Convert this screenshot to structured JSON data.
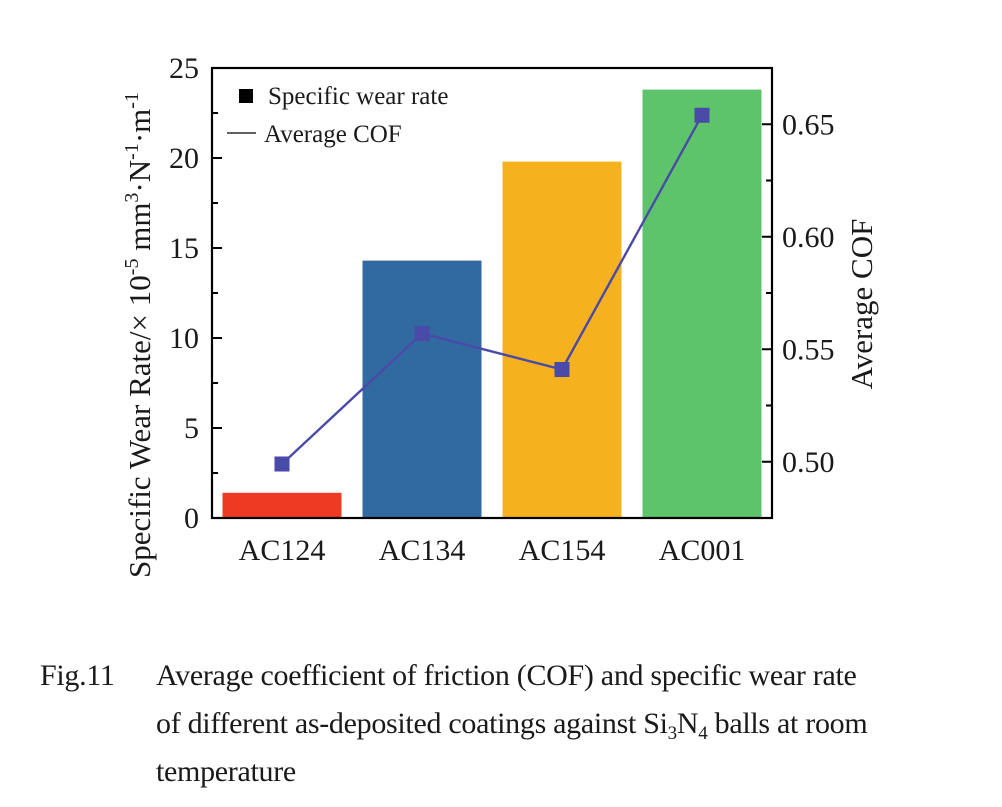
{
  "chart_data": {
    "type": "bar",
    "categories": [
      "AC124",
      "AC134",
      "AC154",
      "AC001"
    ],
    "series": [
      {
        "name": "Specific wear rate",
        "kind": "bar",
        "axis": "left",
        "values": [
          1.4,
          14.3,
          19.8,
          23.8
        ],
        "colors": [
          "#ee3a22",
          "#306aa0",
          "#f6b21e",
          "#5ec46c"
        ]
      },
      {
        "name": "Average COF",
        "kind": "line",
        "axis": "right",
        "values": [
          0.499,
          0.557,
          0.541,
          0.654
        ],
        "color": "#4a4aa8",
        "marker": "square"
      }
    ],
    "ylabel": {
      "main": "Specific Wear Rate/× 10",
      "exp1": "-5",
      "mid": " mm",
      "exp2": "3",
      "mid2": "·N",
      "exp3": "-1",
      "mid3": "·m",
      "exp4": "-1"
    },
    "y2label": "Average COF",
    "xlabel": "",
    "ylim": [
      0,
      25
    ],
    "yticks": [
      0,
      5,
      10,
      15,
      20,
      25
    ],
    "y2lim": [
      0.475,
      0.675
    ],
    "y2ticks": [
      "0.50",
      "0.55",
      "0.60",
      "0.65"
    ],
    "legend": {
      "position": "top-left",
      "entries": [
        {
          "label": "Specific wear rate",
          "symbol": "square"
        },
        {
          "label": "Average COF",
          "symbol": "line"
        }
      ]
    },
    "grid": false
  },
  "caption": {
    "fig_label": "Fig.11",
    "line1": "Average coefficient of friction (COF) and specific wear rate",
    "line2_pre": "of different as-deposited coatings against Si",
    "sub1": "3",
    "line2_mid": "N",
    "sub2": "4",
    "line2_post": " balls at room",
    "line3": "temperature"
  }
}
